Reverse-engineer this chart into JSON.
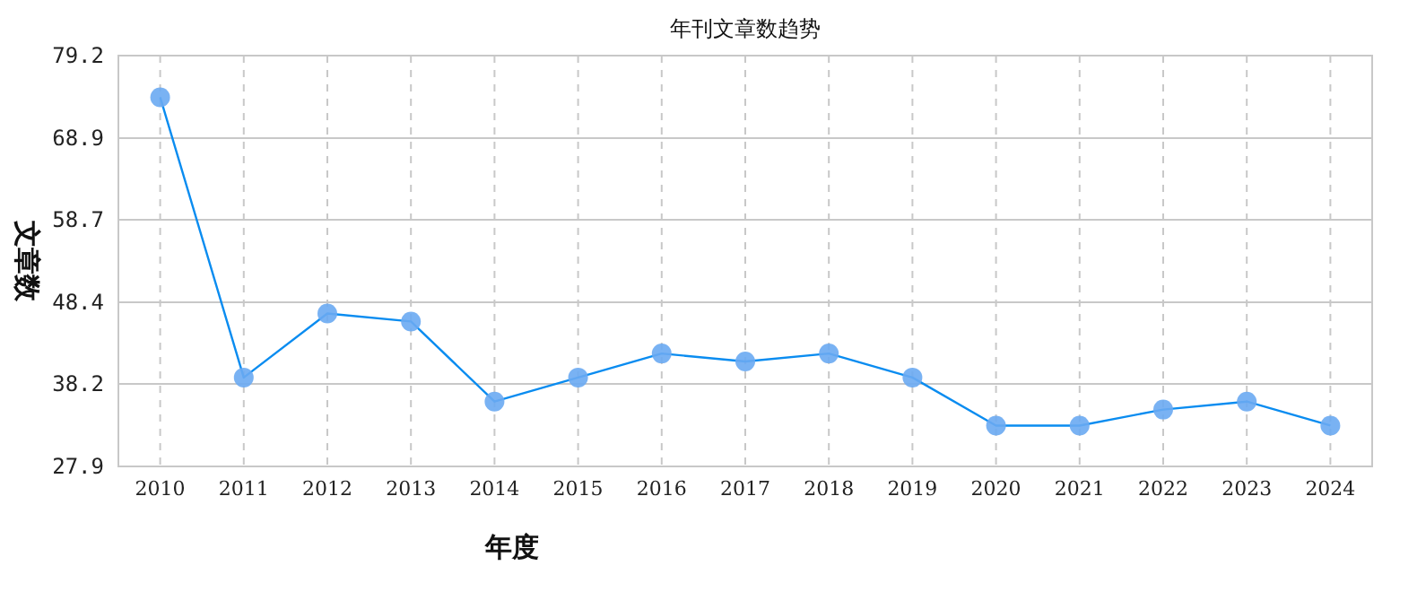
{
  "chart_data": {
    "type": "line",
    "title": "年刊文章数趋势",
    "xlabel": "年度",
    "ylabel": "文章数",
    "categories": [
      "2010",
      "2011",
      "2012",
      "2013",
      "2014",
      "2015",
      "2016",
      "2017",
      "2018",
      "2019",
      "2020",
      "2021",
      "2022",
      "2023",
      "2024"
    ],
    "series": [
      {
        "color": "#0a8cf0",
        "values": [
          74,
          39,
          47,
          46,
          36,
          39,
          42,
          41,
          42,
          39,
          33,
          33,
          35,
          36,
          33
        ]
      }
    ],
    "ylim": [
      27.9,
      79.2
    ],
    "yticks": [
      27.9,
      38.2,
      48.4,
      58.7,
      68.9,
      79.2
    ],
    "grid": true,
    "marker": "circle",
    "line_style": "solid"
  }
}
